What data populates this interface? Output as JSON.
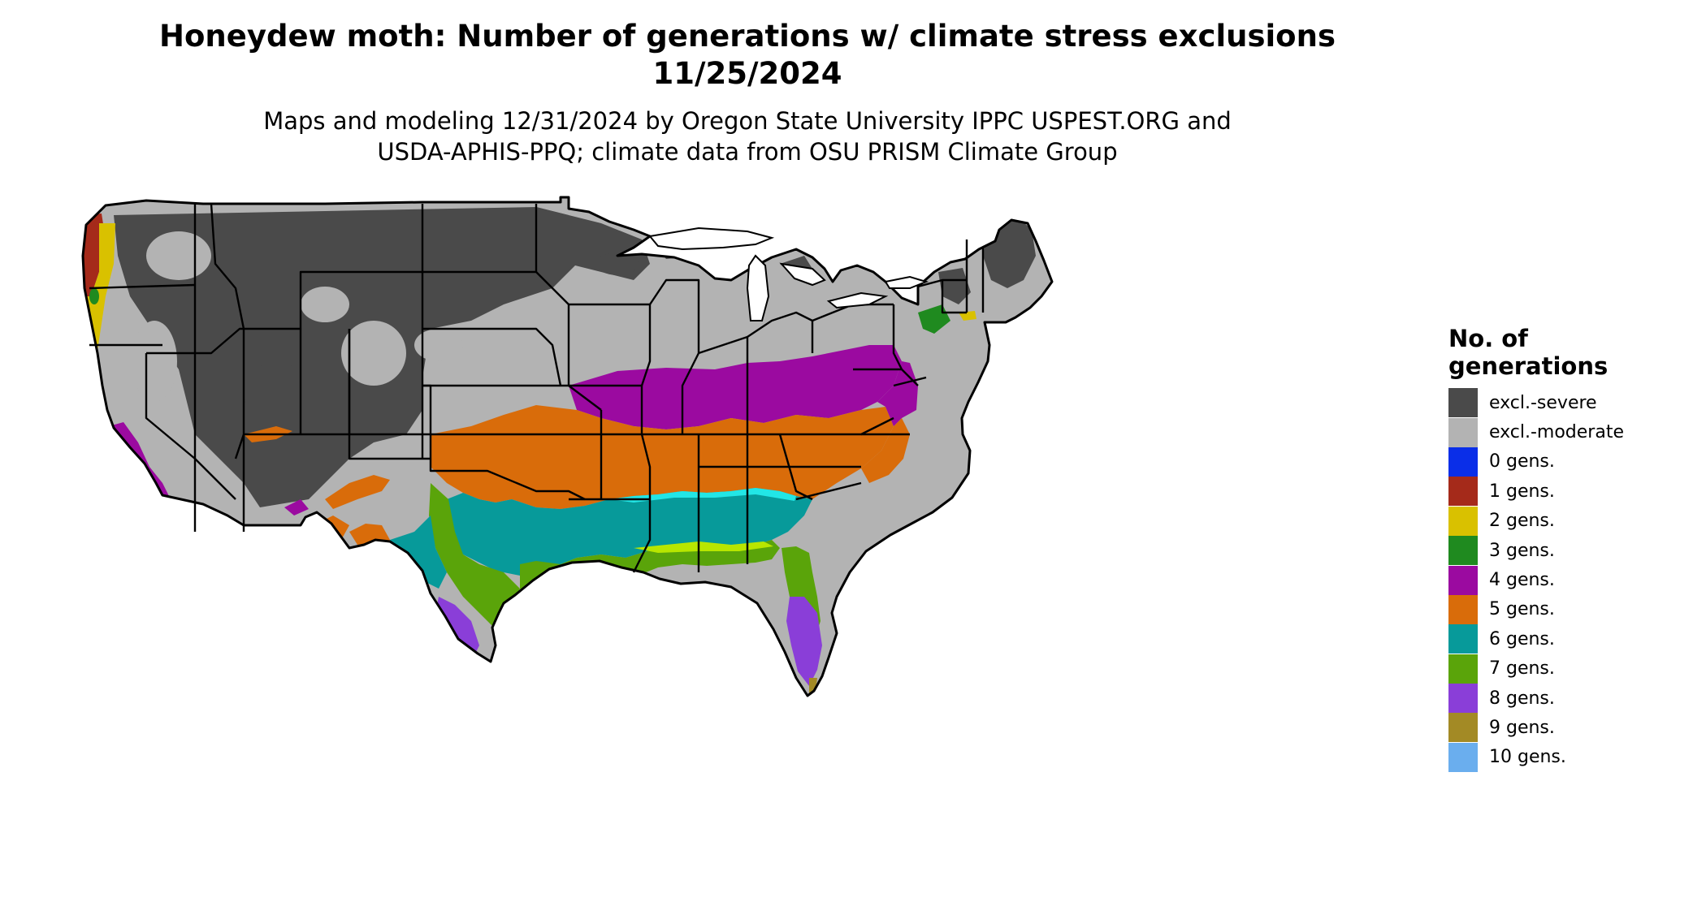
{
  "title": {
    "line1": "Honeydew moth: Number of generations w/ climate stress exclusions",
    "line2": "11/25/2024"
  },
  "subtitle": {
    "line1": "Maps and modeling 12/31/2024 by Oregon State University IPPC USPEST.ORG and",
    "line2": "USDA-APHIS-PPQ; climate data from OSU PRISM Climate Group"
  },
  "legend": {
    "title_line1": "No. of",
    "title_line2": "generations",
    "items": [
      {
        "label": "excl.-severe",
        "color": "#4a4a4a"
      },
      {
        "label": "excl.-moderate",
        "color": "#b3b3b3"
      },
      {
        "label": "0 gens.",
        "color": "#0a2ee8"
      },
      {
        "label": "1 gens.",
        "color": "#a52a1a"
      },
      {
        "label": "2 gens.",
        "color": "#d9c100"
      },
      {
        "label": "3 gens.",
        "color": "#1f8a1f"
      },
      {
        "label": "4 gens.",
        "color": "#9b0aa0"
      },
      {
        "label": "5 gens.",
        "color": "#d96c0a"
      },
      {
        "label": "6 gens.",
        "color": "#079a9a"
      },
      {
        "label": "7 gens.",
        "color": "#5aa40a"
      },
      {
        "label": "8 gens.",
        "color": "#8a3ed8"
      },
      {
        "label": "9 gens.",
        "color": "#a38a25"
      },
      {
        "label": "10 gens.",
        "color": "#6aaeee"
      }
    ]
  },
  "map_colors": {
    "cyan_edge": "#22e6e6",
    "yellow_green": "#b8e600",
    "border": "#000000"
  }
}
